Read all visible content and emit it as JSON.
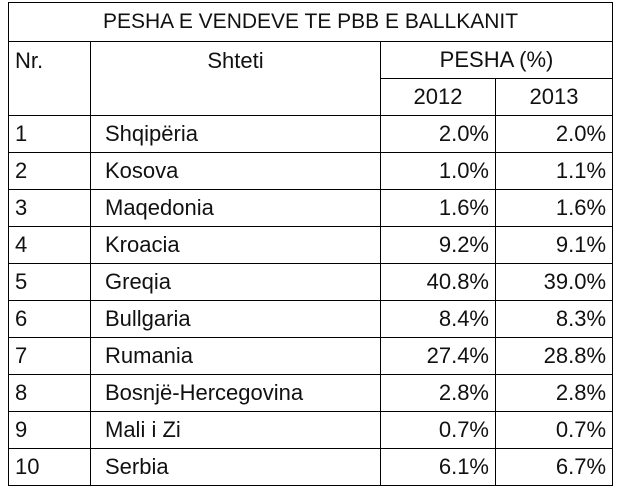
{
  "table": {
    "title": "PESHA E VENDEVE TE PBB E BALLKANIT",
    "headers": {
      "nr": "Nr.",
      "country": "Shteti",
      "share": "PESHA (%)",
      "years": [
        "2012",
        "2013"
      ]
    },
    "rows": [
      [
        "1",
        "Shqipëria",
        "2.0%",
        "2.0%"
      ],
      [
        "2",
        "Kosova",
        "1.0%",
        "1.1%"
      ],
      [
        "3",
        "Maqedonia",
        "1.6%",
        "1.6%"
      ],
      [
        "4",
        "Kroacia",
        "9.2%",
        "9.1%"
      ],
      [
        "5",
        "Greqia",
        "40.8%",
        "39.0%"
      ],
      [
        "6",
        "Bullgaria",
        "8.4%",
        "8.3%"
      ],
      [
        "7",
        "Rumania",
        "27.4%",
        "28.8%"
      ],
      [
        "8",
        "Bosnjë-Hercegovina",
        "2.8%",
        "2.8%"
      ],
      [
        "9",
        "Mali i Zi",
        "0.7%",
        "0.7%"
      ],
      [
        "10",
        "Serbia",
        "6.1%",
        "6.7%"
      ]
    ]
  }
}
